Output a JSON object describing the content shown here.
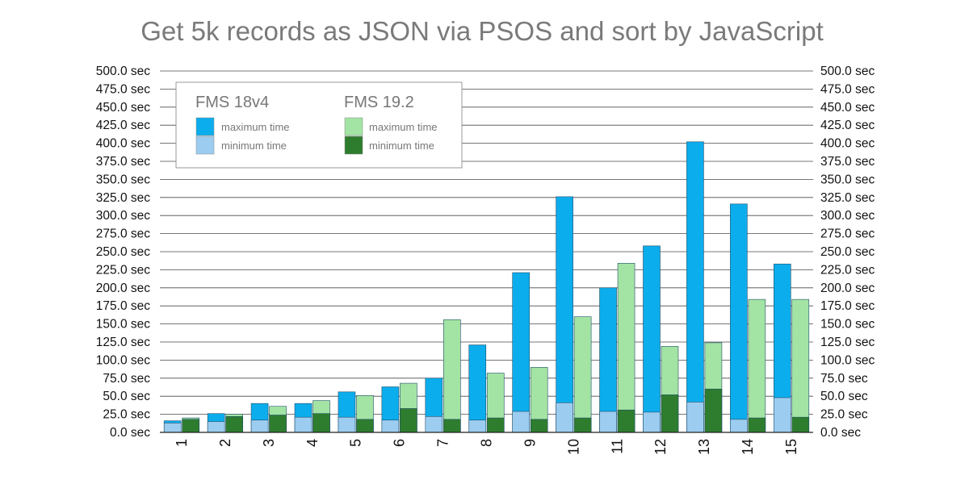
{
  "chart_data": {
    "type": "bar",
    "title": "Get 5k records as JSON via PSOS and sort by JavaScript",
    "xlabel": "",
    "ylabel": "",
    "ylim": [
      0,
      500
    ],
    "ytick_step": 25,
    "ytick_suffix": " sec",
    "ytick_decimals": 1,
    "y_axis_both_sides": true,
    "grid": true,
    "legend_position": "top-left",
    "categories": [
      "1",
      "2",
      "3",
      "4",
      "5",
      "6",
      "7",
      "8",
      "9",
      "10",
      "11",
      "12",
      "13",
      "14",
      "15"
    ],
    "groups": [
      {
        "name": "FMS 18v4",
        "series": [
          {
            "name": "maximum time",
            "color": "#0cadec",
            "values": [
              16,
              26,
              40,
              40,
              56,
              63,
              75,
              121,
              221,
              326,
              200,
              258,
              402,
              316,
              233
            ]
          },
          {
            "name": "minimum time",
            "color": "#9ccdf0",
            "values": [
              13,
              15,
              17,
              21,
              21,
              17,
              22,
              17,
              29,
              41,
              29,
              28,
              42,
              18,
              48
            ]
          }
        ]
      },
      {
        "name": "FMS 19.2",
        "series": [
          {
            "name": "maximum time",
            "color": "#a3e4a4",
            "values": [
              20,
              25,
              36,
              44,
              51,
              68,
              156,
              82,
              90,
              160,
              234,
              119,
              124,
              184,
              184
            ]
          },
          {
            "name": "minimum time",
            "color": "#2e7d2e",
            "values": [
              18,
              22,
              24,
              26,
              18,
              33,
              18,
              20,
              18,
              20,
              31,
              52,
              60,
              20,
              21
            ]
          }
        ]
      }
    ]
  }
}
